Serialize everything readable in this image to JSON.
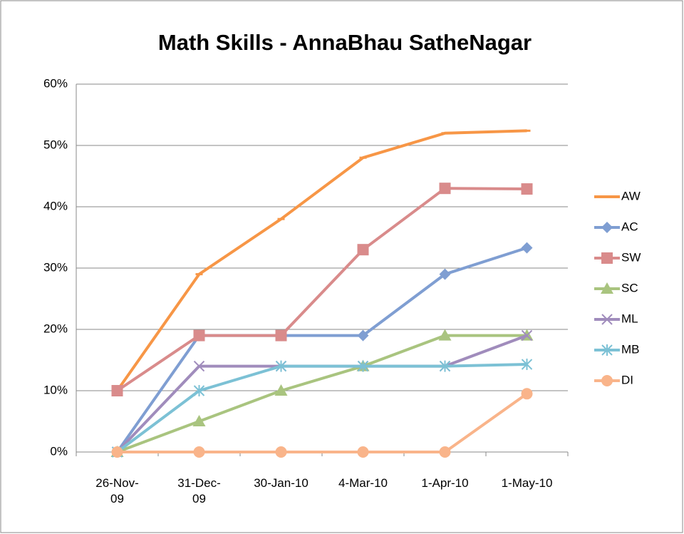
{
  "chart_data": {
    "type": "line",
    "title": "Math Skills - AnnaBhau SatheNagar",
    "categories": [
      "26-Nov-09",
      "31-Dec-09",
      "30-Jan-10",
      "4-Mar-10",
      "1-Apr-10",
      "1-May-10"
    ],
    "series": [
      {
        "name": "AW",
        "color": "#f79646",
        "marker": "dash",
        "values": [
          10,
          29,
          38,
          48,
          52,
          52.4
        ]
      },
      {
        "name": "AC",
        "color": "#7f9ed2",
        "marker": "diamond",
        "values": [
          0,
          19,
          19,
          19,
          29,
          33.3
        ]
      },
      {
        "name": "SW",
        "color": "#d98b8b",
        "marker": "square",
        "values": [
          10,
          19,
          19,
          33,
          43,
          42.9
        ]
      },
      {
        "name": "SC",
        "color": "#a9c47f",
        "marker": "triangle",
        "values": [
          0,
          5,
          10,
          14,
          19,
          19
        ]
      },
      {
        "name": "ML",
        "color": "#a08cbc",
        "marker": "x",
        "values": [
          0,
          14,
          14,
          14,
          14,
          19
        ]
      },
      {
        "name": "MB",
        "color": "#7cc1d5",
        "marker": "star",
        "values": [
          0,
          10,
          14,
          14,
          14,
          14.3
        ]
      },
      {
        "name": "DI",
        "color": "#f9b48a",
        "marker": "circle",
        "values": [
          0,
          0,
          0,
          0,
          0,
          9.5
        ]
      }
    ],
    "ylim": [
      0,
      60
    ],
    "yticks": [
      {
        "value": 0,
        "label": "0%"
      },
      {
        "value": 10,
        "label": "10%"
      },
      {
        "value": 20,
        "label": "20%"
      },
      {
        "value": 30,
        "label": "30%"
      },
      {
        "value": 40,
        "label": "40%"
      },
      {
        "value": 50,
        "label": "50%"
      },
      {
        "value": 60,
        "label": "60%"
      }
    ],
    "grid": true,
    "legend": "right"
  }
}
